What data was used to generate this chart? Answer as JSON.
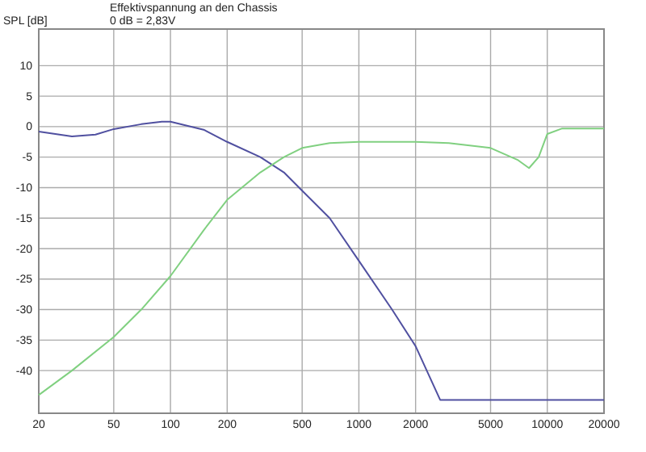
{
  "chart_data": {
    "type": "line",
    "title": "Effektivspannung an den Chassis",
    "subtitle": "0 dB = 2,83V",
    "ylabel": "SPL [dB]",
    "log": "x",
    "grid": true,
    "xlim": [
      20,
      20000
    ],
    "xticks": [
      20,
      50,
      100,
      200,
      500,
      1000,
      2000,
      5000,
      10000,
      20000
    ],
    "ylim": [
      -47,
      16
    ],
    "yticks": [
      10,
      5,
      0,
      -5,
      -10,
      -15,
      -20,
      -25,
      -30,
      -35,
      -40
    ],
    "series": [
      {
        "color": "#5050a0",
        "x": [
          20,
          30,
          40,
          50,
          70,
          90,
          100,
          150,
          200,
          300,
          400,
          500,
          700,
          1000,
          1500,
          2000,
          2700,
          20000
        ],
        "values": [
          -0.8,
          -1.6,
          -1.3,
          -0.4,
          0.4,
          0.8,
          0.8,
          -0.5,
          -2.5,
          -5,
          -7.5,
          -10.5,
          -15,
          -22,
          -30,
          -36,
          -44.8,
          -44.8
        ]
      },
      {
        "color": "#80d080",
        "x": [
          20,
          30,
          50,
          70,
          100,
          150,
          200,
          300,
          400,
          500,
          700,
          1000,
          2000,
          3000,
          5000,
          7000,
          8000,
          9000,
          10000,
          12000,
          20000
        ],
        "values": [
          -44,
          -40,
          -34.5,
          -30,
          -24.5,
          -17,
          -12,
          -7.5,
          -5,
          -3.5,
          -2.7,
          -2.5,
          -2.5,
          -2.7,
          -3.5,
          -5.5,
          -6.8,
          -5,
          -1.2,
          -0.3,
          -0.3
        ]
      }
    ]
  }
}
